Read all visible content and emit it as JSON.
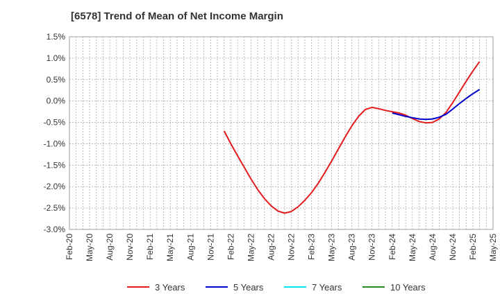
{
  "chart_data": {
    "type": "line",
    "title": "[6578]  Trend of Mean of Net Income Margin",
    "xlabel": "",
    "ylabel": "",
    "y_unit": "%",
    "ylim": [
      -3.0,
      1.5
    ],
    "y_ticks": [
      "1.5%",
      "1.0%",
      "0.5%",
      "0.0%",
      "-0.5%",
      "-1.0%",
      "-1.5%",
      "-2.0%",
      "-2.5%",
      "-3.0%"
    ],
    "y_tick_values": [
      1.5,
      1.0,
      0.5,
      0.0,
      -0.5,
      -1.0,
      -1.5,
      -2.0,
      -2.5,
      -3.0
    ],
    "x_ticks": [
      "Feb-20",
      "May-20",
      "Aug-20",
      "Nov-20",
      "Feb-21",
      "May-21",
      "Aug-21",
      "Nov-21",
      "Feb-22",
      "May-22",
      "Aug-22",
      "Nov-22",
      "Feb-23",
      "May-23",
      "Aug-23",
      "Nov-23",
      "Feb-24",
      "May-24",
      "Aug-24",
      "Nov-24",
      "Feb-25",
      "May-25"
    ],
    "grid": true,
    "legend_position": "bottom",
    "series": [
      {
        "name": "3 Years",
        "color": "#e41a1c",
        "points": [
          [
            "Jan-22",
            -0.7
          ],
          [
            "Feb-22",
            -1.0
          ],
          [
            "Mar-22",
            -1.28
          ],
          [
            "Apr-22",
            -1.55
          ],
          [
            "May-22",
            -1.82
          ],
          [
            "Jun-22",
            -2.07
          ],
          [
            "Jul-22",
            -2.28
          ],
          [
            "Aug-22",
            -2.45
          ],
          [
            "Sep-22",
            -2.57
          ],
          [
            "Oct-22",
            -2.62
          ],
          [
            "Nov-22",
            -2.58
          ],
          [
            "Dec-22",
            -2.47
          ],
          [
            "Jan-23",
            -2.32
          ],
          [
            "Feb-23",
            -2.14
          ],
          [
            "Mar-23",
            -1.92
          ],
          [
            "Apr-23",
            -1.67
          ],
          [
            "May-23",
            -1.4
          ],
          [
            "Jun-23",
            -1.12
          ],
          [
            "Jul-23",
            -0.84
          ],
          [
            "Aug-23",
            -0.58
          ],
          [
            "Sep-23",
            -0.36
          ],
          [
            "Oct-23",
            -0.2
          ],
          [
            "Nov-23",
            -0.15
          ],
          [
            "Dec-23",
            -0.18
          ],
          [
            "Jan-24",
            -0.22
          ],
          [
            "Feb-24",
            -0.25
          ],
          [
            "Mar-24",
            -0.28
          ],
          [
            "Apr-24",
            -0.33
          ],
          [
            "May-24",
            -0.41
          ],
          [
            "Jun-24",
            -0.48
          ],
          [
            "Jul-24",
            -0.51
          ],
          [
            "Aug-24",
            -0.5
          ],
          [
            "Sep-24",
            -0.42
          ],
          [
            "Oct-24",
            -0.27
          ],
          [
            "Nov-24",
            -0.04
          ],
          [
            "Dec-24",
            0.21
          ],
          [
            "Jan-25",
            0.46
          ],
          [
            "Feb-25",
            0.7
          ],
          [
            "Mar-25",
            0.92
          ]
        ]
      },
      {
        "name": "5 Years",
        "color": "#0000cc",
        "points": [
          [
            "Feb-24",
            -0.28
          ],
          [
            "Mar-24",
            -0.32
          ],
          [
            "Apr-24",
            -0.36
          ],
          [
            "May-24",
            -0.39
          ],
          [
            "Jun-24",
            -0.42
          ],
          [
            "Jul-24",
            -0.43
          ],
          [
            "Aug-24",
            -0.42
          ],
          [
            "Sep-24",
            -0.38
          ],
          [
            "Oct-24",
            -0.31
          ],
          [
            "Nov-24",
            -0.19
          ],
          [
            "Dec-24",
            -0.06
          ],
          [
            "Jan-25",
            0.06
          ],
          [
            "Feb-25",
            0.17
          ],
          [
            "Mar-25",
            0.27
          ]
        ]
      },
      {
        "name": "7 Years",
        "color": "#00e5ee",
        "points": []
      },
      {
        "name": "10 Years",
        "color": "#228b22",
        "points": []
      }
    ]
  }
}
